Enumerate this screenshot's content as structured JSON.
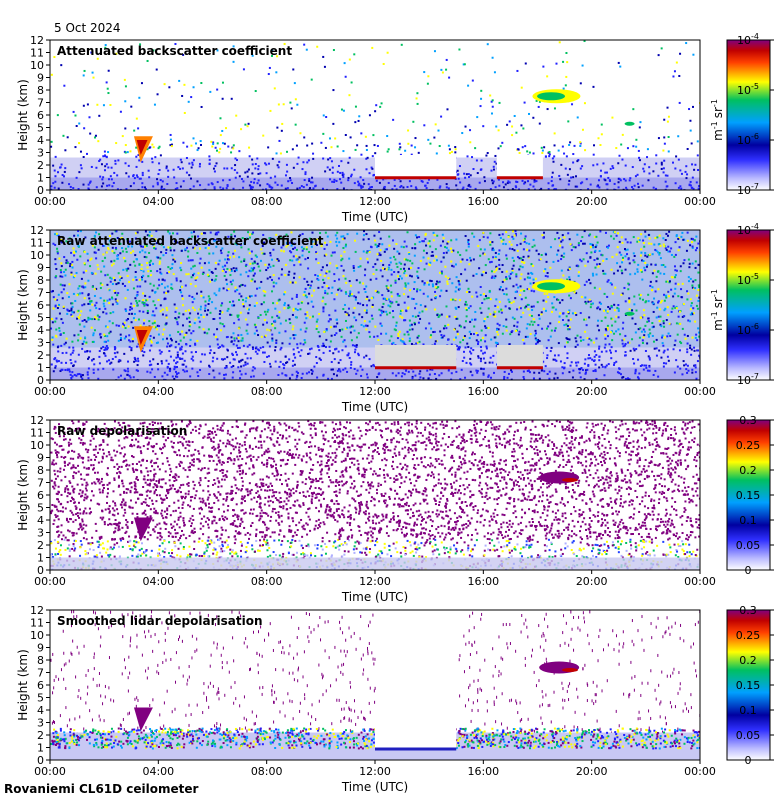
{
  "header": {
    "date": "5 Oct 2024"
  },
  "footer": {
    "site": "Rovaniemi CL61D ceilometer"
  },
  "chart_data": [
    {
      "type": "heatmap",
      "title": "Attenuated backscatter coefficient",
      "xlabel": "Time (UTC)",
      "ylabel": "Height (km)",
      "x_ticks": [
        "00:00",
        "04:00",
        "08:00",
        "12:00",
        "16:00",
        "20:00",
        "00:00"
      ],
      "y_ticks": [
        "0",
        "1",
        "2",
        "3",
        "4",
        "5",
        "6",
        "7",
        "8",
        "9",
        "10",
        "11",
        "12"
      ],
      "ylim": [
        0,
        12
      ],
      "colorbar": {
        "scale": "log",
        "ticks": [
          "10",
          "10",
          "10",
          "10"
        ],
        "exponents": [
          "-4",
          "-5",
          "-6",
          "-7"
        ],
        "unit": "m",
        "unit_exp1": "-1",
        "unit_sr": "sr",
        "unit_exp2": "-1",
        "range": [
          1e-07,
          0.0001
        ]
      },
      "features": {
        "boundary_layer_top_km": 2.8,
        "cloud_near_03h_km": 3.5,
        "cloud_near_18h_km": 7.5,
        "low_cloud_12_15h_km": 1.0
      }
    },
    {
      "type": "heatmap",
      "title": "Raw attenuated backscatter coefficient",
      "xlabel": "Time (UTC)",
      "ylabel": "Height (km)",
      "x_ticks": [
        "00:00",
        "04:00",
        "08:00",
        "12:00",
        "16:00",
        "20:00",
        "00:00"
      ],
      "y_ticks": [
        "0",
        "1",
        "2",
        "3",
        "4",
        "5",
        "6",
        "7",
        "8",
        "9",
        "10",
        "11",
        "12"
      ],
      "ylim": [
        0,
        12
      ],
      "colorbar": {
        "scale": "log",
        "ticks": [
          "10",
          "10",
          "10",
          "10"
        ],
        "exponents": [
          "-4",
          "-5",
          "-6",
          "-7"
        ],
        "unit": "m",
        "unit_exp1": "-1",
        "unit_sr": "sr",
        "unit_exp2": "-1",
        "range": [
          1e-07,
          0.0001
        ]
      }
    },
    {
      "type": "heatmap",
      "title": "Raw depolarisation",
      "xlabel": "Time (UTC)",
      "ylabel": "Height (km)",
      "x_ticks": [
        "00:00",
        "04:00",
        "08:00",
        "12:00",
        "16:00",
        "20:00",
        "00:00"
      ],
      "y_ticks": [
        "0",
        "1",
        "2",
        "3",
        "4",
        "5",
        "6",
        "7",
        "8",
        "9",
        "10",
        "11",
        "12"
      ],
      "ylim": [
        0,
        12
      ],
      "colorbar": {
        "scale": "linear",
        "ticks": [
          "0.3",
          "0.25",
          "0.2",
          "0.15",
          "0.1",
          "0.05",
          "0"
        ],
        "range": [
          0,
          0.3
        ]
      }
    },
    {
      "type": "heatmap",
      "title": "Smoothed lidar depolarisation",
      "xlabel": "Time (UTC)",
      "ylabel": "Height (km)",
      "x_ticks": [
        "00:00",
        "04:00",
        "08:00",
        "12:00",
        "16:00",
        "20:00",
        "00:00"
      ],
      "y_ticks": [
        "0",
        "1",
        "2",
        "3",
        "4",
        "5",
        "6",
        "7",
        "8",
        "9",
        "10",
        "11",
        "12"
      ],
      "ylim": [
        0,
        12
      ],
      "colorbar": {
        "scale": "linear",
        "ticks": [
          "0.3",
          "0.25",
          "0.2",
          "0.15",
          "0.1",
          "0.05",
          "0"
        ],
        "range": [
          0,
          0.3
        ]
      }
    }
  ]
}
